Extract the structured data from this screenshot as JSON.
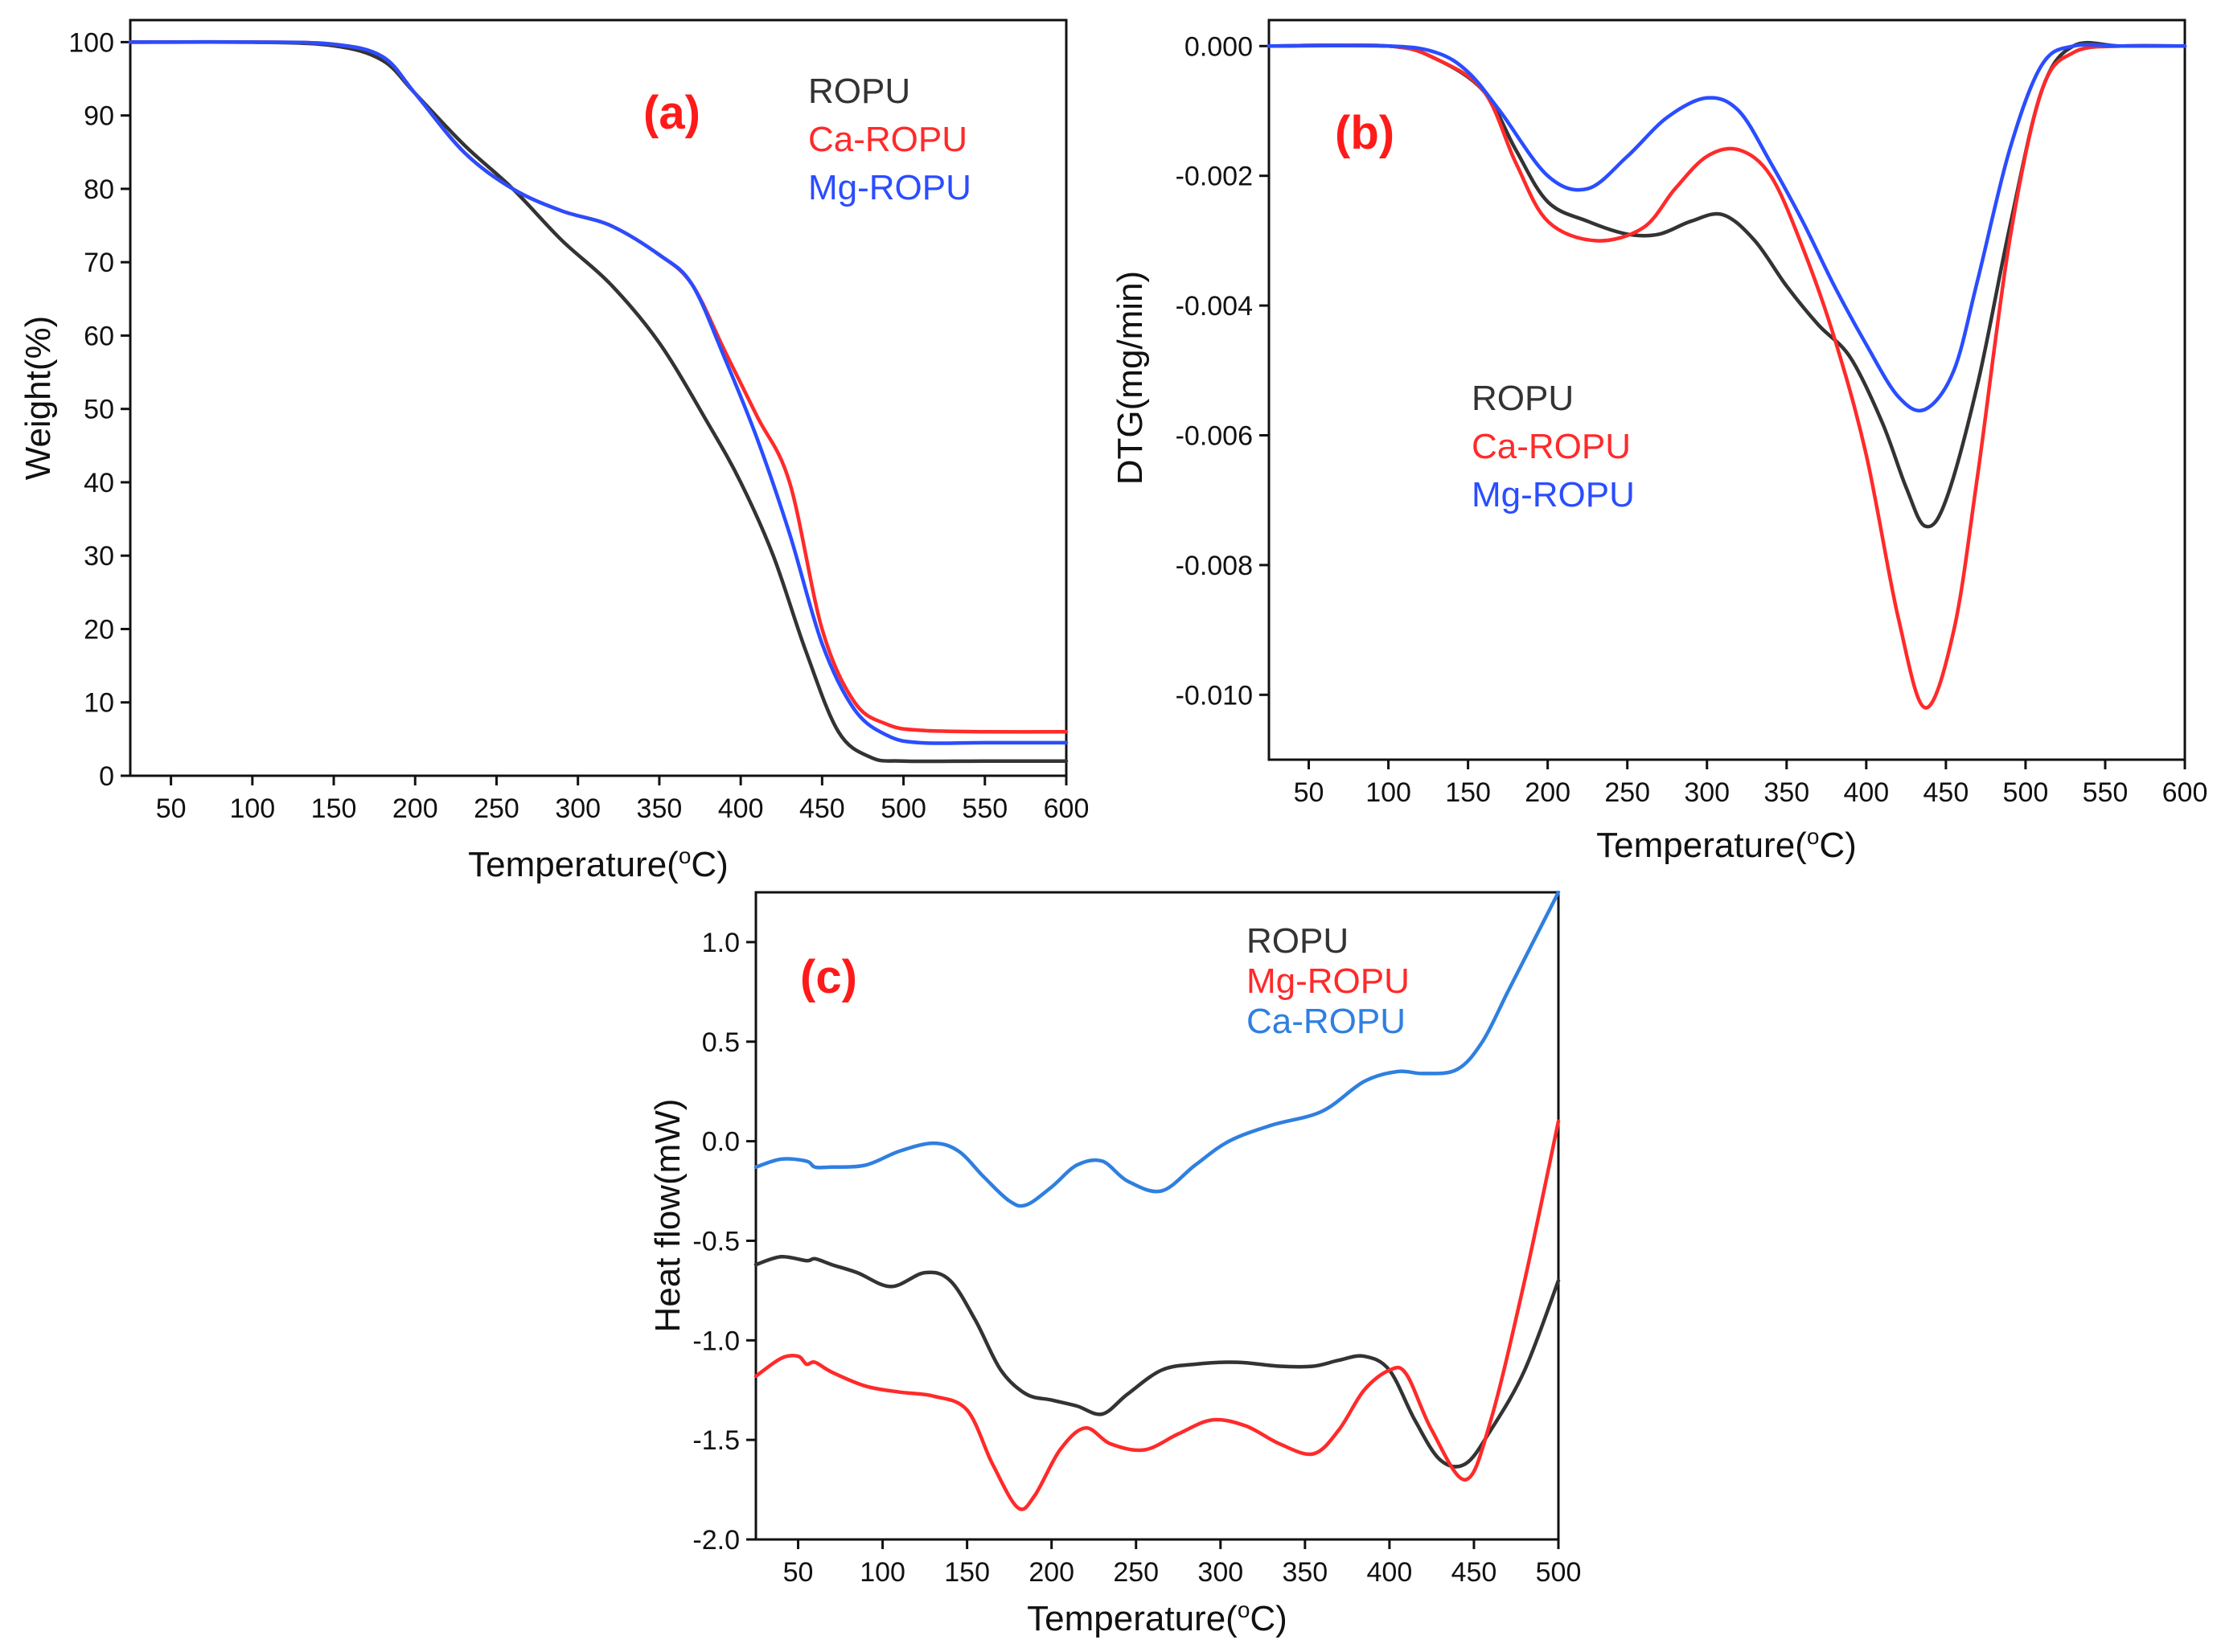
{
  "colors": {
    "black": "#333333",
    "red": "#ff2a2a",
    "blue": "#2a4dff",
    "blue_c": "#2f7fe0",
    "panel_label": "#ff1a1a",
    "text": "#111111"
  },
  "chart_data": [
    {
      "id": "a",
      "type": "line",
      "panel_label": "(a)",
      "xlabel": "Temperature(",
      "xlabel_sup": "o",
      "xlabel_end": "C)",
      "ylabel": "Weight(%)",
      "xlim": [
        25,
        600
      ],
      "ylim": [
        0,
        103
      ],
      "xticks": [
        50,
        100,
        150,
        200,
        250,
        300,
        350,
        400,
        450,
        500,
        550,
        600
      ],
      "yticks": [
        0,
        10,
        20,
        30,
        40,
        50,
        60,
        70,
        80,
        90,
        100
      ],
      "ytick_labels": [
        "0",
        "10",
        "20",
        "30",
        "40",
        "50",
        "60",
        "70",
        "80",
        "90",
        "100"
      ],
      "legend_position": "top-right",
      "series": [
        {
          "name": "ROPU",
          "color": "#333333",
          "x": [
            25,
            100,
            150,
            180,
            200,
            230,
            260,
            290,
            320,
            350,
            380,
            400,
            420,
            440,
            460,
            480,
            500,
            550,
            600
          ],
          "values": [
            100,
            100,
            99.5,
            97.5,
            93,
            86,
            80,
            73,
            67,
            59,
            48,
            40,
            30,
            17,
            6,
            2.5,
            2,
            2,
            2
          ]
        },
        {
          "name": "Ca-ROPU",
          "color": "#ff2a2a",
          "x": [
            25,
            100,
            150,
            180,
            200,
            230,
            260,
            290,
            320,
            350,
            370,
            390,
            410,
            430,
            450,
            470,
            490,
            510,
            550,
            600
          ],
          "values": [
            100,
            100,
            99.7,
            98,
            93,
            85,
            80,
            77,
            75,
            71,
            67,
            58,
            49,
            40,
            20,
            10,
            7,
            6.2,
            6,
            6
          ]
        },
        {
          "name": "Mg-ROPU",
          "color": "#2a4dff",
          "x": [
            25,
            100,
            150,
            180,
            200,
            230,
            260,
            290,
            320,
            350,
            370,
            390,
            410,
            430,
            450,
            470,
            490,
            510,
            550,
            600
          ],
          "values": [
            100,
            100,
            99.7,
            98,
            93,
            85,
            80,
            77,
            75,
            71,
            67,
            57,
            46,
            33,
            18,
            9,
            5.5,
            4.5,
            4.5,
            4.5
          ]
        }
      ]
    },
    {
      "id": "b",
      "type": "line",
      "panel_label": "(b)",
      "xlabel": "Temperature(",
      "xlabel_sup": "o",
      "xlabel_end": "C)",
      "ylabel": "DTG(mg/min)",
      "xlim": [
        25,
        600
      ],
      "ylim": [
        -0.011,
        0.0004
      ],
      "xticks": [
        50,
        100,
        150,
        200,
        250,
        300,
        350,
        400,
        450,
        500,
        550,
        600
      ],
      "yticks": [
        0.0,
        -0.002,
        -0.004,
        -0.006,
        -0.008,
        -0.01
      ],
      "ytick_labels": [
        "0.000",
        "-0.002",
        "-0.004",
        "-0.006",
        "-0.008",
        "-0.010"
      ],
      "legend_position": "center-left",
      "series": [
        {
          "name": "ROPU",
          "color": "#333333",
          "x": [
            25,
            100,
            130,
            160,
            180,
            200,
            225,
            250,
            270,
            290,
            310,
            330,
            350,
            370,
            390,
            410,
            425,
            437,
            450,
            470,
            490,
            510,
            530,
            560,
            600
          ],
          "values": [
            0,
            0,
            -0.0002,
            -0.0007,
            -0.0016,
            -0.0024,
            -0.0027,
            -0.0029,
            -0.0029,
            -0.0027,
            -0.0026,
            -0.003,
            -0.0037,
            -0.0043,
            -0.0048,
            -0.0058,
            -0.0068,
            -0.0074,
            -0.007,
            -0.0052,
            -0.0028,
            -0.0007,
            0,
            0,
            0
          ]
        },
        {
          "name": "Ca-ROPU",
          "color": "#ff2a2a",
          "x": [
            25,
            100,
            130,
            160,
            180,
            200,
            230,
            260,
            280,
            300,
            320,
            340,
            360,
            380,
            400,
            420,
            437,
            455,
            470,
            490,
            510,
            530,
            560,
            600
          ],
          "values": [
            0,
            0,
            -0.0002,
            -0.0007,
            -0.0018,
            -0.0027,
            -0.003,
            -0.0028,
            -0.0022,
            -0.0017,
            -0.0016,
            -0.002,
            -0.0031,
            -0.0045,
            -0.0063,
            -0.0088,
            -0.0102,
            -0.009,
            -0.0066,
            -0.003,
            -0.0007,
            -0.0001,
            0,
            0
          ]
        },
        {
          "name": "Mg-ROPU",
          "color": "#2a4dff",
          "x": [
            25,
            100,
            130,
            150,
            170,
            200,
            225,
            250,
            275,
            300,
            320,
            340,
            360,
            380,
            400,
            420,
            437,
            455,
            470,
            490,
            510,
            530,
            560,
            600
          ],
          "values": [
            0,
            0,
            -0.0001,
            -0.0004,
            -0.001,
            -0.002,
            -0.0022,
            -0.0017,
            -0.0011,
            -0.0008,
            -0.001,
            -0.0018,
            -0.0027,
            -0.0037,
            -0.0046,
            -0.0054,
            -0.0056,
            -0.005,
            -0.0036,
            -0.0016,
            -0.0003,
            0,
            0,
            0
          ]
        }
      ]
    },
    {
      "id": "c",
      "type": "line",
      "panel_label": "(c)",
      "xlabel": "Temperature(",
      "xlabel_sup": "o",
      "xlabel_end": "C)",
      "ylabel": "Heat flow(mW)",
      "xlim": [
        25,
        500
      ],
      "ylim": [
        -2.0,
        1.25
      ],
      "xticks": [
        50,
        100,
        150,
        200,
        250,
        300,
        350,
        400,
        450,
        500
      ],
      "yticks": [
        1.0,
        0.5,
        0.0,
        -0.5,
        -1.0,
        -1.5,
        -2.0
      ],
      "ytick_labels": [
        "1.0",
        "0.5",
        "0.0",
        "-0.5",
        "-1.0",
        "-1.5",
        "-2.0"
      ],
      "legend_position": "top-right",
      "series": [
        {
          "name": "ROPU",
          "color": "#333333",
          "x": [
            25,
            40,
            55,
            60,
            70,
            85,
            105,
            125,
            140,
            155,
            170,
            185,
            200,
            215,
            230,
            245,
            265,
            285,
            310,
            335,
            355,
            370,
            385,
            400,
            415,
            430,
            445,
            460,
            480,
            500
          ],
          "values": [
            -0.62,
            -0.58,
            -0.6,
            -0.59,
            -0.62,
            -0.66,
            -0.73,
            -0.66,
            -0.7,
            -0.9,
            -1.15,
            -1.27,
            -1.3,
            -1.33,
            -1.37,
            -1.27,
            -1.15,
            -1.12,
            -1.11,
            -1.13,
            -1.13,
            -1.1,
            -1.08,
            -1.15,
            -1.4,
            -1.6,
            -1.62,
            -1.45,
            -1.15,
            -0.7
          ]
        },
        {
          "name": "Mg-ROPU",
          "color": "#ff2a2a",
          "x": [
            25,
            40,
            50,
            55,
            60,
            70,
            90,
            110,
            130,
            150,
            165,
            180,
            190,
            205,
            220,
            235,
            255,
            275,
            295,
            315,
            335,
            355,
            370,
            385,
            400,
            410,
            425,
            445,
            460,
            480,
            500
          ],
          "values": [
            -1.18,
            -1.09,
            -1.08,
            -1.12,
            -1.11,
            -1.16,
            -1.23,
            -1.26,
            -1.28,
            -1.35,
            -1.62,
            -1.84,
            -1.78,
            -1.55,
            -1.44,
            -1.52,
            -1.55,
            -1.47,
            -1.4,
            -1.43,
            -1.52,
            -1.57,
            -1.45,
            -1.25,
            -1.15,
            -1.17,
            -1.45,
            -1.7,
            -1.4,
            -0.7,
            0.1
          ]
        },
        {
          "name": "Ca-ROPU",
          "color": "#2f7fe0",
          "x": [
            25,
            40,
            55,
            60,
            70,
            90,
            110,
            130,
            145,
            160,
            175,
            185,
            200,
            215,
            230,
            245,
            265,
            285,
            305,
            330,
            360,
            385,
            405,
            420,
            440,
            455,
            470,
            485,
            500
          ],
          "values": [
            -0.13,
            -0.09,
            -0.1,
            -0.13,
            -0.13,
            -0.12,
            -0.05,
            -0.01,
            -0.05,
            -0.18,
            -0.3,
            -0.32,
            -0.23,
            -0.12,
            -0.1,
            -0.2,
            -0.25,
            -0.12,
            0.0,
            0.08,
            0.15,
            0.3,
            0.35,
            0.34,
            0.36,
            0.5,
            0.75,
            1.0,
            1.25
          ]
        }
      ]
    }
  ]
}
